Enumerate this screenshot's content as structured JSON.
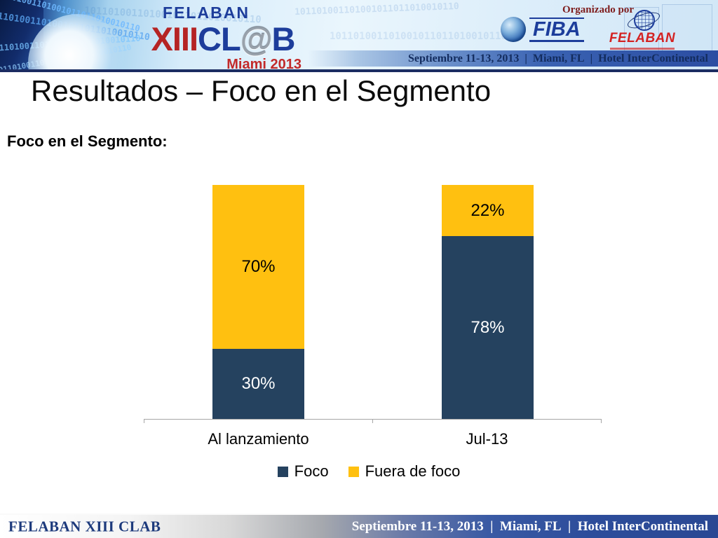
{
  "header": {
    "logo": {
      "brand": "FELABAN",
      "xiii": "XIII",
      "cl": "CL",
      "at": "@",
      "b": "B",
      "city": "Miami 2013"
    },
    "organized_by": "Organizado por",
    "fiba": "FIBA",
    "felaban": "FELABAN",
    "event_info": "Septiembre 11-13, 2013  |  Miami, FL  |  Hotel InterContinental",
    "binary": "101101001101001011011010010110"
  },
  "title": "Resultados – Foco en el Segmento",
  "subtitle": "Foco en el Segmento:",
  "chart_data": {
    "type": "bar",
    "stacked": true,
    "categories": [
      "Al lanzamiento",
      "Jul-13"
    ],
    "series": [
      {
        "name": "Foco",
        "color": "#25425F",
        "label_color": "#FFFFFF",
        "values": [
          30,
          78
        ]
      },
      {
        "name": "Fuera de foco",
        "color": "#FFC010",
        "label_color": "#000000",
        "values": [
          70,
          22
        ]
      }
    ],
    "value_label_suffix": "%",
    "ylim": [
      0,
      100
    ],
    "grid": false,
    "axis_color": "#A6A6A6",
    "legend_position": "bottom"
  },
  "footer": {
    "left": "FELABAN XIII CLAB",
    "right": "Septiembre 11-13, 2013  |  Miami, FL  |  Hotel InterContinental"
  }
}
